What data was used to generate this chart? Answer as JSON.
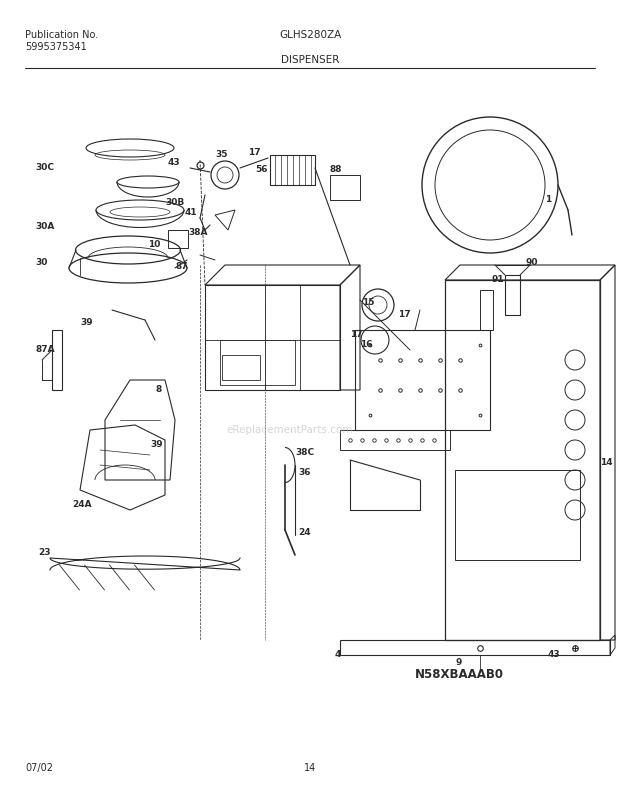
{
  "title_left1": "Publication No.",
  "title_left2": "5995375341",
  "title_center1": "GLHS280ZA",
  "title_center2": "DISPENSER",
  "footer_left": "07/02",
  "footer_center": "14",
  "diagram_id": "N58XBAAAB0",
  "watermark": "eReplacementParts.com",
  "bg_color": "#ffffff",
  "line_color": "#2a2a2a",
  "label_color": "#2a2a2a"
}
